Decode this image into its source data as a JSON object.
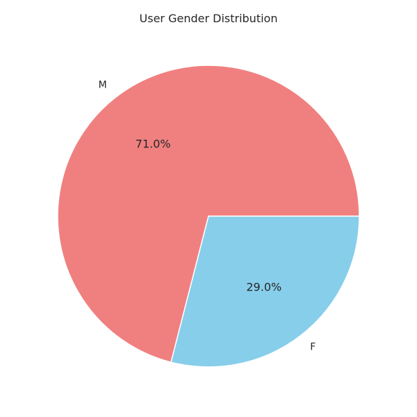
{
  "chart_data": {
    "type": "pie",
    "title": "User Gender Distribution",
    "slices": [
      {
        "label": "M",
        "value": 71.0,
        "pct_label": "71.0%",
        "color": "#F08080"
      },
      {
        "label": "F",
        "value": 29.0,
        "pct_label": "29.0%",
        "color": "#87CEEB"
      }
    ],
    "start_angle": "0 degrees (3 o'clock), counter-clockwise",
    "edge_color": "#FFFFFF"
  }
}
